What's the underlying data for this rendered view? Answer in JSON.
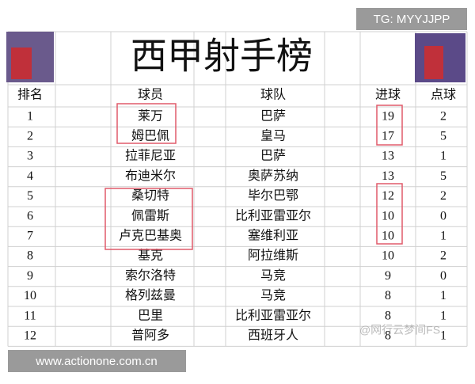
{
  "header": {
    "title": "西甲射手榜"
  },
  "table": {
    "columns": [
      "排名",
      "球员",
      "球队",
      "进球",
      "点球"
    ],
    "rows": [
      [
        1,
        "莱万",
        "巴萨",
        19,
        2
      ],
      [
        2,
        "姆巴佩",
        "皇马",
        17,
        5
      ],
      [
        3,
        "拉菲尼亚",
        "巴萨",
        13,
        1
      ],
      [
        4,
        "布迪米尔",
        "奥萨苏纳",
        13,
        5
      ],
      [
        5,
        "桑切特",
        "毕尔巴鄂",
        12,
        2
      ],
      [
        6,
        "佩雷斯",
        "比利亚雷亚尔",
        10,
        0
      ],
      [
        7,
        "卢克巴基奥",
        "塞维利亚",
        10,
        1
      ],
      [
        8,
        "基克",
        "阿拉维斯",
        10,
        2
      ],
      [
        9,
        "索尔洛特",
        "马竞",
        9,
        0
      ],
      [
        10,
        "格列兹曼",
        "马竞",
        8,
        1
      ],
      [
        11,
        "巴里",
        "比利亚雷亚尔",
        8,
        1
      ],
      [
        12,
        "普阿多",
        "西班牙人",
        8,
        1
      ]
    ]
  },
  "watermarks": {
    "top": "TG: MYYJJPP",
    "bottom": "www.actionone.com.cn",
    "corner": "@网行云梦间FS"
  }
}
